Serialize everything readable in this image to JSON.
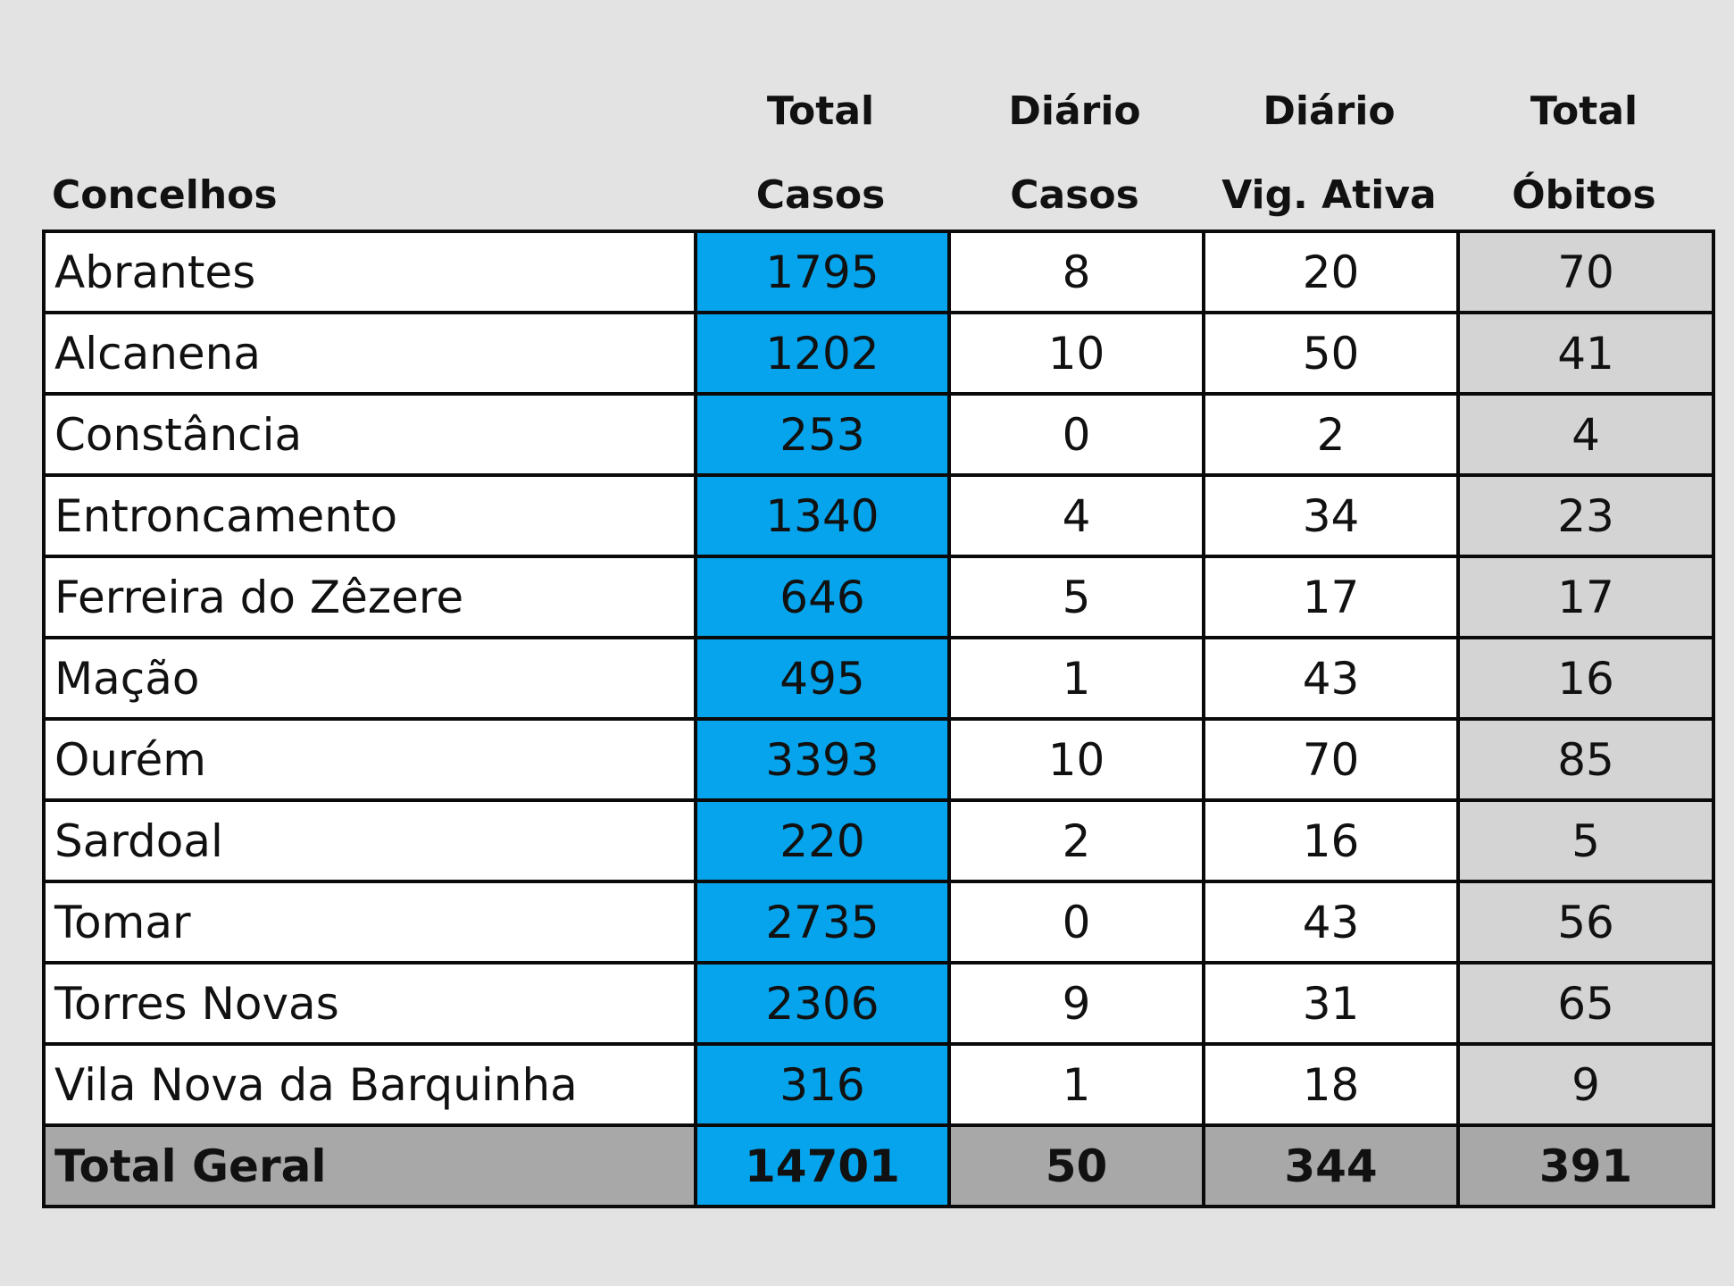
{
  "headers": {
    "concelhos": "Concelhos",
    "total_casos": [
      "Total",
      "Casos"
    ],
    "diario_casos": [
      "Diário",
      "Casos"
    ],
    "diario_vig": [
      "Diário",
      "Vig. Ativa"
    ],
    "total_obitos": [
      "Total",
      "Óbitos"
    ]
  },
  "rows": [
    {
      "concelho": "Abrantes",
      "total_casos": "1795",
      "diario_casos": "8",
      "diario_vig": "20",
      "total_obitos": "70"
    },
    {
      "concelho": "Alcanena",
      "total_casos": "1202",
      "diario_casos": "10",
      "diario_vig": "50",
      "total_obitos": "41"
    },
    {
      "concelho": "Constância",
      "total_casos": "253",
      "diario_casos": "0",
      "diario_vig": "2",
      "total_obitos": "4"
    },
    {
      "concelho": "Entroncamento",
      "total_casos": "1340",
      "diario_casos": "4",
      "diario_vig": "34",
      "total_obitos": "23"
    },
    {
      "concelho": "Ferreira do Zêzere",
      "total_casos": "646",
      "diario_casos": "5",
      "diario_vig": "17",
      "total_obitos": "17"
    },
    {
      "concelho": "Mação",
      "total_casos": "495",
      "diario_casos": "1",
      "diario_vig": "43",
      "total_obitos": "16"
    },
    {
      "concelho": "Ourém",
      "total_casos": "3393",
      "diario_casos": "10",
      "diario_vig": "70",
      "total_obitos": "85"
    },
    {
      "concelho": "Sardoal",
      "total_casos": "220",
      "diario_casos": "2",
      "diario_vig": "16",
      "total_obitos": "5"
    },
    {
      "concelho": "Tomar",
      "total_casos": "2735",
      "diario_casos": "0",
      "diario_vig": "43",
      "total_obitos": "56"
    },
    {
      "concelho": "Torres Novas",
      "total_casos": "2306",
      "diario_casos": "9",
      "diario_vig": "31",
      "total_obitos": "65"
    },
    {
      "concelho": "Vila Nova da Barquinha",
      "total_casos": "316",
      "diario_casos": "1",
      "diario_vig": "18",
      "total_obitos": "9"
    }
  ],
  "total": {
    "concelho": "Total Geral",
    "total_casos": "14701",
    "diario_casos": "50",
    "diario_vig": "344",
    "total_obitos": "391"
  },
  "colors": {
    "casos_highlight": "#05a4ec",
    "obitos_fill": "#d4d4d4",
    "total_row_fill": "#a8a8a8",
    "background": "#e3e3e3"
  }
}
